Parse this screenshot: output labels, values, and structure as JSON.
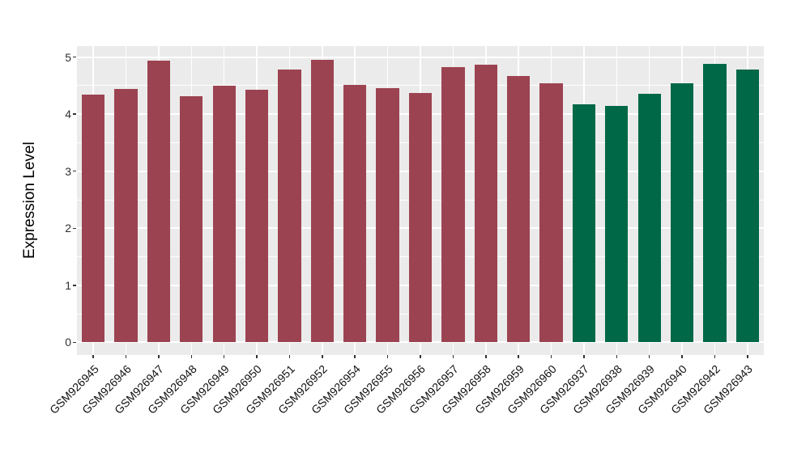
{
  "figure": {
    "background": "#ffffff",
    "panel_background": "#ebebeb",
    "grid_color": "#ffffff",
    "tick_mark_color": "#333333",
    "axis_text_color": "#303030",
    "axis_title_color": "#000000"
  },
  "chart_data": {
    "type": "bar",
    "title": "",
    "xlabel": "",
    "ylabel": "Expression Level",
    "ylim": [
      -0.25,
      5.2
    ],
    "yticks": [
      0,
      1,
      2,
      3,
      4,
      5
    ],
    "minor_yticks": [
      0.5,
      1.5,
      2.5,
      3.5,
      4.5
    ],
    "grid": "horizontal major+minor and vertical major white gridlines on gray panel",
    "legend_position": "none",
    "bar_width_ratio": 0.7,
    "x_label_rotation_deg": 45,
    "categories": [
      "GSM926945",
      "GSM926946",
      "GSM926947",
      "GSM926948",
      "GSM926949",
      "GSM926950",
      "GSM926951",
      "GSM926952",
      "GSM926954",
      "GSM926955",
      "GSM926956",
      "GSM926957",
      "GSM926958",
      "GSM926959",
      "GSM926960",
      "GSM926937",
      "GSM926938",
      "GSM926939",
      "GSM926940",
      "GSM926942",
      "GSM926943"
    ],
    "values": [
      4.35,
      4.44,
      4.94,
      4.31,
      4.5,
      4.43,
      4.79,
      4.95,
      4.51,
      4.46,
      4.37,
      4.83,
      4.87,
      4.67,
      4.54,
      4.17,
      4.15,
      4.36,
      4.54,
      4.88,
      4.78
    ],
    "bar_colors": [
      "#9C4351",
      "#9C4351",
      "#9C4351",
      "#9C4351",
      "#9C4351",
      "#9C4351",
      "#9C4351",
      "#9C4351",
      "#9C4351",
      "#9C4351",
      "#9C4351",
      "#9C4351",
      "#9C4351",
      "#9C4351",
      "#9C4351",
      "#006847",
      "#006847",
      "#006847",
      "#006847",
      "#006847",
      "#006847"
    ],
    "group_colors": {
      "red": "#9C4351",
      "green": "#006847"
    }
  }
}
